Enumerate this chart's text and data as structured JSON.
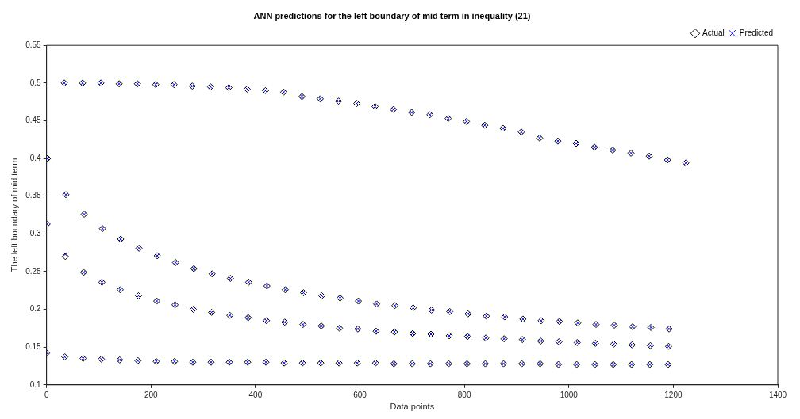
{
  "chart_data": {
    "type": "scatter",
    "title": "ANN predictions for the left boundary of mid term in inequality (21)",
    "xlabel": "Data points",
    "ylabel": "The left boundary of mid term",
    "x": [
      0,
      1,
      2,
      34,
      35,
      36,
      37,
      69,
      70,
      71,
      72,
      104,
      105,
      106,
      107,
      139,
      140,
      141,
      142,
      174,
      175,
      176,
      177,
      209,
      210,
      211,
      212,
      244,
      245,
      246,
      247,
      279,
      280,
      281,
      282,
      314,
      315,
      316,
      317,
      349,
      350,
      351,
      352,
      384,
      385,
      386,
      387,
      419,
      420,
      421,
      422,
      454,
      455,
      456,
      457,
      489,
      490,
      491,
      492,
      524,
      525,
      526,
      527,
      559,
      560,
      561,
      562,
      594,
      595,
      596,
      597,
      629,
      630,
      631,
      632,
      664,
      665,
      666,
      667,
      699,
      700,
      701,
      702,
      734,
      735,
      736,
      737,
      769,
      770,
      771,
      772,
      804,
      805,
      806,
      807,
      839,
      840,
      841,
      842,
      874,
      875,
      876,
      877,
      909,
      910,
      911,
      912,
      944,
      945,
      946,
      947,
      979,
      980,
      981,
      982,
      1014,
      1015,
      1016,
      1017,
      1049,
      1050,
      1051,
      1052,
      1084,
      1085,
      1086,
      1087,
      1119,
      1120,
      1121,
      1122,
      1154,
      1155,
      1156,
      1157,
      1189,
      1190,
      1191,
      1192,
      1224
    ],
    "series": [
      {
        "name": "Actual",
        "color": "#000000",
        "marker": "diamond",
        "values": [
          0.142,
          0.313,
          0.4,
          0.5,
          0.137,
          0.27,
          0.352,
          0.5,
          0.135,
          0.249,
          0.326,
          0.5,
          0.134,
          0.236,
          0.307,
          0.499,
          0.133,
          0.226,
          0.293,
          0.499,
          0.132,
          0.218,
          0.281,
          0.498,
          0.131,
          0.211,
          0.271,
          0.498,
          0.131,
          0.206,
          0.262,
          0.496,
          0.13,
          0.2,
          0.254,
          0.495,
          0.13,
          0.196,
          0.247,
          0.494,
          0.13,
          0.192,
          0.241,
          0.492,
          0.13,
          0.189,
          0.236,
          0.49,
          0.13,
          0.185,
          0.231,
          0.488,
          0.129,
          0.183,
          0.226,
          0.482,
          0.129,
          0.18,
          0.222,
          0.479,
          0.129,
          0.178,
          0.218,
          0.476,
          0.129,
          0.175,
          0.215,
          0.473,
          0.129,
          0.174,
          0.211,
          0.469,
          0.129,
          0.171,
          0.207,
          0.465,
          0.128,
          0.17,
          0.205,
          0.461,
          0.128,
          0.168,
          0.202,
          0.458,
          0.128,
          0.167,
          0.199,
          0.453,
          0.128,
          0.165,
          0.197,
          0.449,
          0.128,
          0.164,
          0.194,
          0.444,
          0.128,
          0.162,
          0.191,
          0.44,
          0.128,
          0.161,
          0.19,
          0.435,
          0.128,
          0.16,
          0.187,
          0.427,
          0.128,
          0.158,
          0.185,
          0.423,
          0.127,
          0.157,
          0.184,
          0.42,
          0.127,
          0.156,
          0.182,
          0.415,
          0.127,
          0.155,
          0.18,
          0.411,
          0.127,
          0.154,
          0.179,
          0.407,
          0.127,
          0.153,
          0.177,
          0.403,
          0.127,
          0.152,
          0.176,
          0.398,
          0.127,
          0.151,
          0.174,
          0.394
        ]
      },
      {
        "name": "Predicted",
        "color": "#0000ff",
        "marker": "cross",
        "values": [
          0.142,
          0.313,
          0.4,
          0.5,
          0.137,
          0.273,
          0.352,
          0.5,
          0.135,
          0.249,
          0.326,
          0.5,
          0.134,
          0.236,
          0.307,
          0.499,
          0.133,
          0.226,
          0.293,
          0.499,
          0.132,
          0.218,
          0.281,
          0.498,
          0.131,
          0.211,
          0.271,
          0.498,
          0.131,
          0.206,
          0.262,
          0.496,
          0.13,
          0.2,
          0.254,
          0.495,
          0.13,
          0.196,
          0.247,
          0.494,
          0.13,
          0.192,
          0.241,
          0.492,
          0.13,
          0.189,
          0.236,
          0.49,
          0.13,
          0.185,
          0.231,
          0.488,
          0.129,
          0.183,
          0.226,
          0.482,
          0.129,
          0.18,
          0.222,
          0.479,
          0.129,
          0.178,
          0.218,
          0.476,
          0.129,
          0.175,
          0.215,
          0.473,
          0.129,
          0.174,
          0.211,
          0.469,
          0.129,
          0.171,
          0.207,
          0.465,
          0.128,
          0.17,
          0.205,
          0.461,
          0.128,
          0.168,
          0.202,
          0.458,
          0.128,
          0.167,
          0.199,
          0.453,
          0.128,
          0.165,
          0.197,
          0.449,
          0.128,
          0.164,
          0.194,
          0.444,
          0.128,
          0.162,
          0.191,
          0.44,
          0.128,
          0.161,
          0.19,
          0.435,
          0.128,
          0.16,
          0.187,
          0.427,
          0.128,
          0.158,
          0.185,
          0.423,
          0.127,
          0.157,
          0.184,
          0.42,
          0.127,
          0.156,
          0.182,
          0.415,
          0.127,
          0.155,
          0.18,
          0.411,
          0.127,
          0.154,
          0.179,
          0.407,
          0.127,
          0.153,
          0.177,
          0.403,
          0.127,
          0.152,
          0.176,
          0.398,
          0.127,
          0.151,
          0.174,
          0.394
        ]
      }
    ],
    "xlim": [
      0,
      1400
    ],
    "xticks": [
      0,
      200,
      400,
      600,
      800,
      1000,
      1200,
      1400
    ],
    "ylim": [
      0.1,
      0.55
    ],
    "yticks": [
      0.1,
      0.15,
      0.2,
      0.25,
      0.3,
      0.35,
      0.4,
      0.45,
      0.5,
      0.55
    ],
    "legend": "top right"
  }
}
